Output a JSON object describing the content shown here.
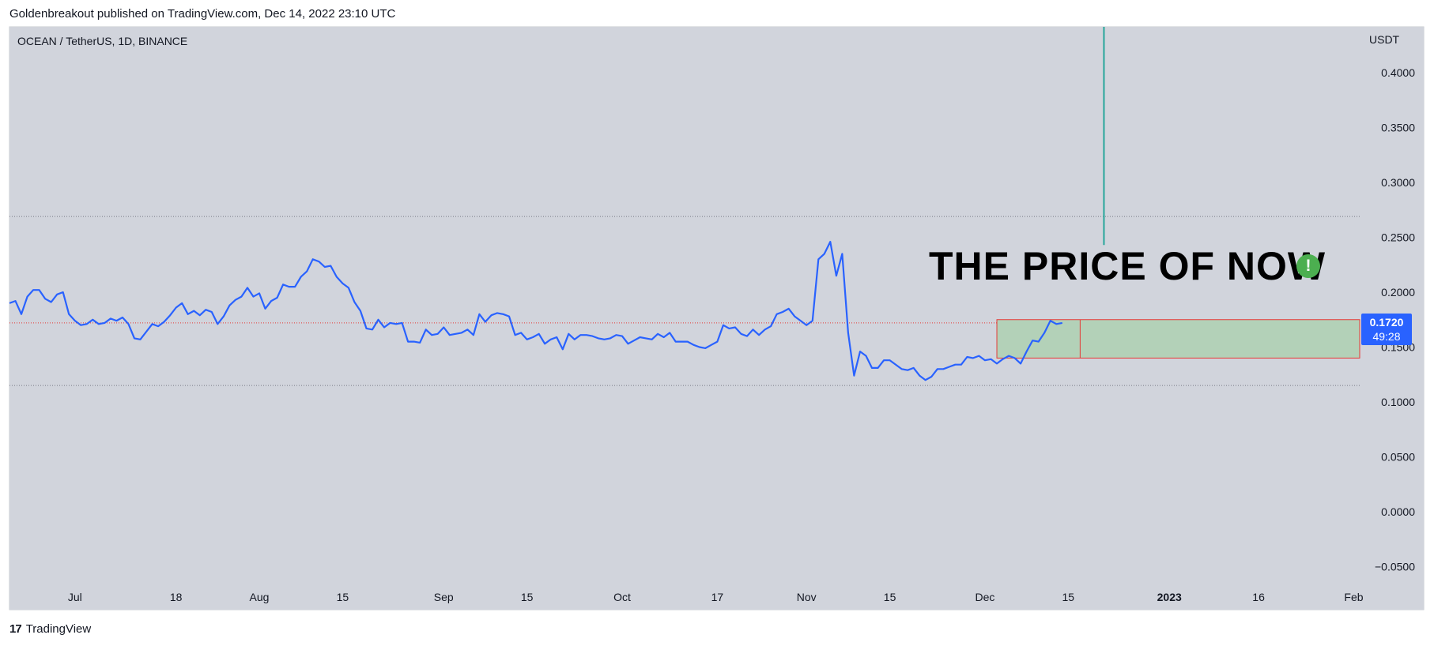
{
  "header": {
    "published_line": "Goldenbreakout published on TradingView.com, Dec 14, 2022 23:10 UTC"
  },
  "symbol_info": "OCEAN / TetherUS, 1D, BINANCE",
  "currency": "USDT",
  "annotation": {
    "text": "THE PRICE OF NOW",
    "icon": "exclamation-icon",
    "icon_glyph": "!"
  },
  "price_tag": {
    "price": "0.1720",
    "countdown": "49:28"
  },
  "footer": {
    "logo_mark": "17",
    "logo_text": "TradingView"
  },
  "colors": {
    "background": "#d1d4dc",
    "line": "#2962ff",
    "box_fill": "#b3d1b8",
    "box_border": "#e53935",
    "vertical_line": "#26a69a",
    "price_tag": "#2962ff",
    "alert_icon": "#4caf50"
  },
  "chart_data": {
    "type": "line",
    "title": "OCEAN / TetherUS, 1D, BINANCE",
    "xlabel": "",
    "ylabel": "USDT",
    "ylim": [
      -0.065,
      0.43
    ],
    "grid": false,
    "y_ticks": [
      "0.4000",
      "0.3500",
      "0.3000",
      "0.2500",
      "0.2000",
      "0.1500",
      "0.1000",
      "0.0500",
      "0.0000",
      "−0.0500"
    ],
    "y_tick_values": [
      0.4,
      0.35,
      0.3,
      0.25,
      0.2,
      0.15,
      0.1,
      0.05,
      0.0,
      -0.05
    ],
    "x_ticks": [
      {
        "label": "Jul",
        "date": "2022-07-01",
        "bold": false
      },
      {
        "label": "18",
        "date": "2022-07-18",
        "bold": false
      },
      {
        "label": "Aug",
        "date": "2022-08-01",
        "bold": false
      },
      {
        "label": "15",
        "date": "2022-08-15",
        "bold": false
      },
      {
        "label": "Sep",
        "date": "2022-09-01",
        "bold": false
      },
      {
        "label": "15",
        "date": "2022-09-15",
        "bold": false
      },
      {
        "label": "Oct",
        "date": "2022-10-01",
        "bold": false
      },
      {
        "label": "17",
        "date": "2022-10-17",
        "bold": false
      },
      {
        "label": "Nov",
        "date": "2022-11-01",
        "bold": false
      },
      {
        "label": "15",
        "date": "2022-11-15",
        "bold": false
      },
      {
        "label": "Dec",
        "date": "2022-12-01",
        "bold": false
      },
      {
        "label": "15",
        "date": "2022-12-15",
        "bold": false
      },
      {
        "label": "2023",
        "date": "2023-01-01",
        "bold": true
      },
      {
        "label": "16",
        "date": "2023-01-16",
        "bold": false
      },
      {
        "label": "Feb",
        "date": "2023-02-01",
        "bold": false
      }
    ],
    "x_range": [
      "2022-06-20",
      "2023-02-02"
    ],
    "series": [
      {
        "color": "#2962ff",
        "points": [
          [
            "2022-06-20",
            0.19
          ],
          [
            "2022-06-21",
            0.192
          ],
          [
            "2022-06-22",
            0.18
          ],
          [
            "2022-06-23",
            0.196
          ],
          [
            "2022-06-24",
            0.202
          ],
          [
            "2022-06-25",
            0.202
          ],
          [
            "2022-06-26",
            0.194
          ],
          [
            "2022-06-27",
            0.191
          ],
          [
            "2022-06-28",
            0.198
          ],
          [
            "2022-06-29",
            0.2
          ],
          [
            "2022-06-30",
            0.18
          ],
          [
            "2022-07-01",
            0.174
          ],
          [
            "2022-07-02",
            0.17
          ],
          [
            "2022-07-03",
            0.171
          ],
          [
            "2022-07-04",
            0.175
          ],
          [
            "2022-07-05",
            0.171
          ],
          [
            "2022-07-06",
            0.172
          ],
          [
            "2022-07-07",
            0.176
          ],
          [
            "2022-07-08",
            0.174
          ],
          [
            "2022-07-09",
            0.177
          ],
          [
            "2022-07-10",
            0.171
          ],
          [
            "2022-07-11",
            0.158
          ],
          [
            "2022-07-12",
            0.157
          ],
          [
            "2022-07-13",
            0.164
          ],
          [
            "2022-07-14",
            0.171
          ],
          [
            "2022-07-15",
            0.169
          ],
          [
            "2022-07-16",
            0.173
          ],
          [
            "2022-07-17",
            0.179
          ],
          [
            "2022-07-18",
            0.186
          ],
          [
            "2022-07-19",
            0.19
          ],
          [
            "2022-07-20",
            0.18
          ],
          [
            "2022-07-21",
            0.183
          ],
          [
            "2022-07-22",
            0.179
          ],
          [
            "2022-07-23",
            0.184
          ],
          [
            "2022-07-24",
            0.182
          ],
          [
            "2022-07-25",
            0.171
          ],
          [
            "2022-07-26",
            0.178
          ],
          [
            "2022-07-27",
            0.188
          ],
          [
            "2022-07-28",
            0.193
          ],
          [
            "2022-07-29",
            0.196
          ],
          [
            "2022-07-30",
            0.204
          ],
          [
            "2022-07-31",
            0.196
          ],
          [
            "2022-08-01",
            0.199
          ],
          [
            "2022-08-02",
            0.185
          ],
          [
            "2022-08-03",
            0.192
          ],
          [
            "2022-08-04",
            0.195
          ],
          [
            "2022-08-05",
            0.207
          ],
          [
            "2022-08-06",
            0.205
          ],
          [
            "2022-08-07",
            0.205
          ],
          [
            "2022-08-08",
            0.214
          ],
          [
            "2022-08-09",
            0.219
          ],
          [
            "2022-08-10",
            0.23
          ],
          [
            "2022-08-11",
            0.228
          ],
          [
            "2022-08-12",
            0.223
          ],
          [
            "2022-08-13",
            0.224
          ],
          [
            "2022-08-14",
            0.214
          ],
          [
            "2022-08-15",
            0.208
          ],
          [
            "2022-08-16",
            0.204
          ],
          [
            "2022-08-17",
            0.191
          ],
          [
            "2022-08-18",
            0.183
          ],
          [
            "2022-08-19",
            0.167
          ],
          [
            "2022-08-20",
            0.166
          ],
          [
            "2022-08-21",
            0.175
          ],
          [
            "2022-08-22",
            0.168
          ],
          [
            "2022-08-23",
            0.172
          ],
          [
            "2022-08-24",
            0.171
          ],
          [
            "2022-08-25",
            0.172
          ],
          [
            "2022-08-26",
            0.155
          ],
          [
            "2022-08-27",
            0.155
          ],
          [
            "2022-08-28",
            0.154
          ],
          [
            "2022-08-29",
            0.166
          ],
          [
            "2022-08-30",
            0.161
          ],
          [
            "2022-08-31",
            0.162
          ],
          [
            "2022-09-01",
            0.168
          ],
          [
            "2022-09-02",
            0.161
          ],
          [
            "2022-09-03",
            0.162
          ],
          [
            "2022-09-04",
            0.163
          ],
          [
            "2022-09-05",
            0.166
          ],
          [
            "2022-09-06",
            0.161
          ],
          [
            "2022-09-07",
            0.18
          ],
          [
            "2022-09-08",
            0.173
          ],
          [
            "2022-09-09",
            0.179
          ],
          [
            "2022-09-10",
            0.181
          ],
          [
            "2022-09-11",
            0.18
          ],
          [
            "2022-09-12",
            0.178
          ],
          [
            "2022-09-13",
            0.161
          ],
          [
            "2022-09-14",
            0.163
          ],
          [
            "2022-09-15",
            0.157
          ],
          [
            "2022-09-16",
            0.159
          ],
          [
            "2022-09-17",
            0.162
          ],
          [
            "2022-09-18",
            0.153
          ],
          [
            "2022-09-19",
            0.157
          ],
          [
            "2022-09-20",
            0.159
          ],
          [
            "2022-09-21",
            0.148
          ],
          [
            "2022-09-22",
            0.162
          ],
          [
            "2022-09-23",
            0.157
          ],
          [
            "2022-09-24",
            0.161
          ],
          [
            "2022-09-25",
            0.161
          ],
          [
            "2022-09-26",
            0.16
          ],
          [
            "2022-09-27",
            0.158
          ],
          [
            "2022-09-28",
            0.157
          ],
          [
            "2022-09-29",
            0.158
          ],
          [
            "2022-09-30",
            0.161
          ],
          [
            "2022-10-01",
            0.16
          ],
          [
            "2022-10-02",
            0.153
          ],
          [
            "2022-10-03",
            0.156
          ],
          [
            "2022-10-04",
            0.159
          ],
          [
            "2022-10-05",
            0.158
          ],
          [
            "2022-10-06",
            0.157
          ],
          [
            "2022-10-07",
            0.162
          ],
          [
            "2022-10-08",
            0.159
          ],
          [
            "2022-10-09",
            0.163
          ],
          [
            "2022-10-10",
            0.155
          ],
          [
            "2022-10-11",
            0.155
          ],
          [
            "2022-10-12",
            0.155
          ],
          [
            "2022-10-13",
            0.152
          ],
          [
            "2022-10-14",
            0.15
          ],
          [
            "2022-10-15",
            0.149
          ],
          [
            "2022-10-16",
            0.152
          ],
          [
            "2022-10-17",
            0.155
          ],
          [
            "2022-10-18",
            0.17
          ],
          [
            "2022-10-19",
            0.167
          ],
          [
            "2022-10-20",
            0.168
          ],
          [
            "2022-10-21",
            0.162
          ],
          [
            "2022-10-22",
            0.16
          ],
          [
            "2022-10-23",
            0.166
          ],
          [
            "2022-10-24",
            0.161
          ],
          [
            "2022-10-25",
            0.166
          ],
          [
            "2022-10-26",
            0.169
          ],
          [
            "2022-10-27",
            0.18
          ],
          [
            "2022-10-28",
            0.182
          ],
          [
            "2022-10-29",
            0.185
          ],
          [
            "2022-10-30",
            0.178
          ],
          [
            "2022-10-31",
            0.174
          ],
          [
            "2022-11-01",
            0.17
          ],
          [
            "2022-11-02",
            0.174
          ],
          [
            "2022-11-03",
            0.23
          ],
          [
            "2022-11-04",
            0.235
          ],
          [
            "2022-11-05",
            0.246
          ],
          [
            "2022-11-06",
            0.215
          ],
          [
            "2022-11-07",
            0.235
          ],
          [
            "2022-11-08",
            0.163
          ],
          [
            "2022-11-09",
            0.124
          ],
          [
            "2022-11-10",
            0.146
          ],
          [
            "2022-11-11",
            0.142
          ],
          [
            "2022-11-12",
            0.131
          ],
          [
            "2022-11-13",
            0.131
          ],
          [
            "2022-11-14",
            0.138
          ],
          [
            "2022-11-15",
            0.138
          ],
          [
            "2022-11-16",
            0.134
          ],
          [
            "2022-11-17",
            0.13
          ],
          [
            "2022-11-18",
            0.129
          ],
          [
            "2022-11-19",
            0.131
          ],
          [
            "2022-11-20",
            0.124
          ],
          [
            "2022-11-21",
            0.12
          ],
          [
            "2022-11-22",
            0.123
          ],
          [
            "2022-11-23",
            0.13
          ],
          [
            "2022-11-24",
            0.13
          ],
          [
            "2022-11-25",
            0.132
          ],
          [
            "2022-11-26",
            0.134
          ],
          [
            "2022-11-27",
            0.134
          ],
          [
            "2022-11-28",
            0.141
          ],
          [
            "2022-11-29",
            0.14
          ],
          [
            "2022-11-30",
            0.142
          ],
          [
            "2022-12-01",
            0.138
          ],
          [
            "2022-12-02",
            0.139
          ],
          [
            "2022-12-03",
            0.135
          ],
          [
            "2022-12-04",
            0.139
          ],
          [
            "2022-12-05",
            0.142
          ],
          [
            "2022-12-06",
            0.14
          ],
          [
            "2022-12-07",
            0.135
          ],
          [
            "2022-12-08",
            0.146
          ],
          [
            "2022-12-09",
            0.156
          ],
          [
            "2022-12-10",
            0.155
          ],
          [
            "2022-12-11",
            0.163
          ],
          [
            "2022-12-12",
            0.174
          ],
          [
            "2022-12-13",
            0.171
          ],
          [
            "2022-12-14",
            0.172
          ]
        ]
      }
    ],
    "horizontal_lines": [
      {
        "value": 0.269,
        "style": "dotted",
        "color": "#787b86"
      },
      {
        "value": 0.172,
        "style": "dotted",
        "color": "#e53935"
      },
      {
        "value": 0.115,
        "style": "dotted",
        "color": "#787b86"
      }
    ],
    "vertical_line": {
      "date": "2022-12-21",
      "from_value": 0.243,
      "color": "#26a69a"
    },
    "range_box": {
      "start_date": "2022-12-03",
      "split_date": "2022-12-17",
      "end_date": "2023-02-02",
      "top_value": 0.175,
      "bottom_value": 0.14
    }
  }
}
